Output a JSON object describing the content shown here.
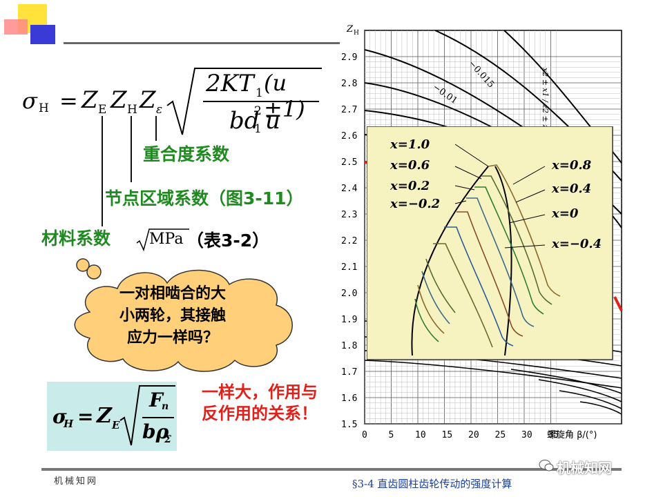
{
  "formula_main": {
    "sigma": "σ",
    "sub_h": "H",
    "equals": "=",
    "z_e": "Z",
    "sub_e": "E",
    "z_h": "Z",
    "sub_h2": "H",
    "z_eps": "Z",
    "sub_eps": "ε",
    "numerator": "2KT",
    "num_sub": "1",
    "num_paren": "(u ±1)",
    "denominator": "bd",
    "den_sup": "2",
    "den_sub": "1",
    "den_u": "u"
  },
  "labels": {
    "overlap": "重合度系数",
    "zone": "节点区域系数（图3-11）",
    "material": "材料系数",
    "unit": "MPa",
    "table": "（表3-2）"
  },
  "cloud": {
    "line1": "一对相啮合的大",
    "line2": "小两轮，其接触",
    "line3": "应力一样吗？"
  },
  "formula2": {
    "sigma": "σ",
    "sub_h": "H",
    "equals": "=",
    "z": "Z",
    "sub_e": "E",
    "num": "F",
    "num_sub": "n",
    "den": "bρ",
    "den_sub": "Σ"
  },
  "answer": "一样大，作用与反作用的关系！",
  "chart": {
    "y_axis_label": "Z",
    "y_axis_sub": "H",
    "y_ticks": [
      "2.9",
      "2.8",
      "2.7",
      "2.6",
      "2.5",
      "2.4",
      "2.3",
      "2.2",
      "2.1",
      "2.0",
      "1.9",
      "1.8",
      "1.7",
      "1.6",
      "1.5"
    ],
    "x_ticks": [
      "0",
      "5",
      "10",
      "15",
      "20",
      "25",
      "30",
      "35"
    ],
    "x_label": "螺旋角 β/(°)",
    "curve_label_1": "−0.015",
    "curve_label_2": "−0.01",
    "ratio_label": "x2 ± x1 / z2 ± z1 = −"
  },
  "inset": {
    "left_labels": [
      "x=1.0",
      "x=0.6",
      "x=0.2",
      "x=−0.2"
    ],
    "right_labels": [
      "x=0.8",
      "x=0.4",
      "x=0",
      "x=−0.4"
    ],
    "bg": "#f6f3c0"
  },
  "footer": {
    "left": "机械知网",
    "right": "§3-4 直齿圆柱齿轮传动的强度计算",
    "watermark": "机械知网"
  },
  "colors": {
    "green": "#1f8a1f",
    "red": "#e0201a",
    "cloud": "#ffcf7a",
    "formula_bg": "#c9ecea"
  }
}
